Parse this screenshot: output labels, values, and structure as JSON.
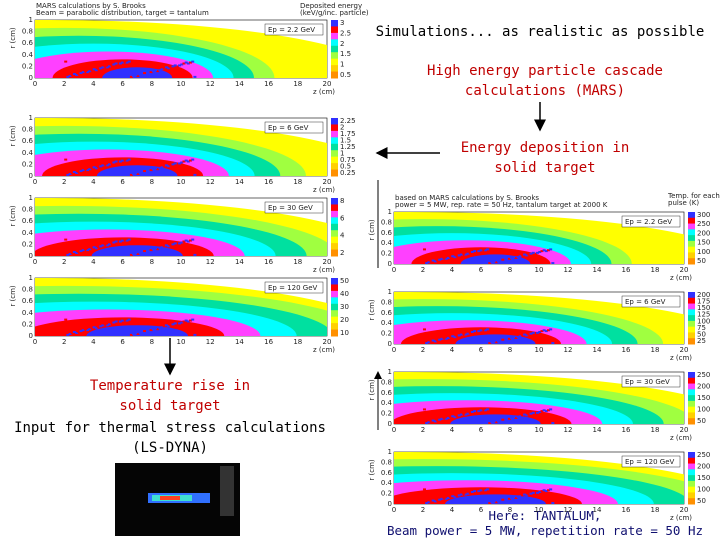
{
  "title": "Simulations... as realistic as possible",
  "steps": {
    "mars": [
      "High energy particle cascade",
      "calculations (MARS)"
    ],
    "deposition": [
      "Energy deposition in",
      "solid target"
    ],
    "temperature": [
      "Temperature rise in",
      "solid target",
      "Input for thermal stress calculations",
      "(LS-DYNA)"
    ]
  },
  "note": [
    "Here: TANTALUM,",
    "Beam power = 5 MW, repetition rate = 50 Hz"
  ],
  "axis": {
    "x_label": "z (cm)",
    "y_label": "r (cm)",
    "x_ticks": [
      "0",
      "2",
      "4",
      "6",
      "8",
      "10",
      "12",
      "14",
      "16",
      "18",
      "20"
    ],
    "y_ticks": [
      "0",
      "0.2",
      "0.4",
      "0.6",
      "0.8",
      "1"
    ]
  },
  "left_header": [
    "MARS calculations by S. Brooks",
    "Beam = parabolic distribution, target = tantalum",
    "Deposited energy",
    "(keV/g/inc. particle)"
  ],
  "right_header": [
    "based on MARS calculations by S. Brooks",
    "power = 5 MW, rep. rate = 50 Hz, tantalum target at 2000 K",
    "Temp. for each",
    "pulse (K)"
  ],
  "left_panels": [
    {
      "energy": "Ep = 2.2 GeV",
      "scale": [
        "3",
        "2.5",
        "2",
        "1.5",
        "1",
        "0.5"
      ]
    },
    {
      "energy": "Ep = 6 GeV",
      "scale": [
        "2.25",
        "2",
        "1.75",
        "1.5",
        "1.25",
        "1",
        "0.75",
        "0.5",
        "0.25"
      ]
    },
    {
      "energy": "Ep = 30 GeV",
      "scale": [
        "8",
        "6",
        "4",
        "2"
      ]
    },
    {
      "energy": "Ep = 120 GeV",
      "scale": [
        "50",
        "40",
        "30",
        "20",
        "10"
      ]
    }
  ],
  "right_panels": [
    {
      "energy": "Ep = 2.2 GeV",
      "scale": [
        "300",
        "250",
        "200",
        "150",
        "100",
        "50"
      ]
    },
    {
      "energy": "Ep = 6 GeV",
      "scale": [
        "200",
        "175",
        "150",
        "125",
        "100",
        "75",
        "50",
        "25"
      ]
    },
    {
      "energy": "Ep = 30 GeV",
      "scale": [
        "250",
        "200",
        "150",
        "100",
        "50"
      ]
    },
    {
      "energy": "Ep = 120 GeV",
      "scale": [
        "250",
        "200",
        "150",
        "100",
        "50"
      ]
    }
  ]
}
